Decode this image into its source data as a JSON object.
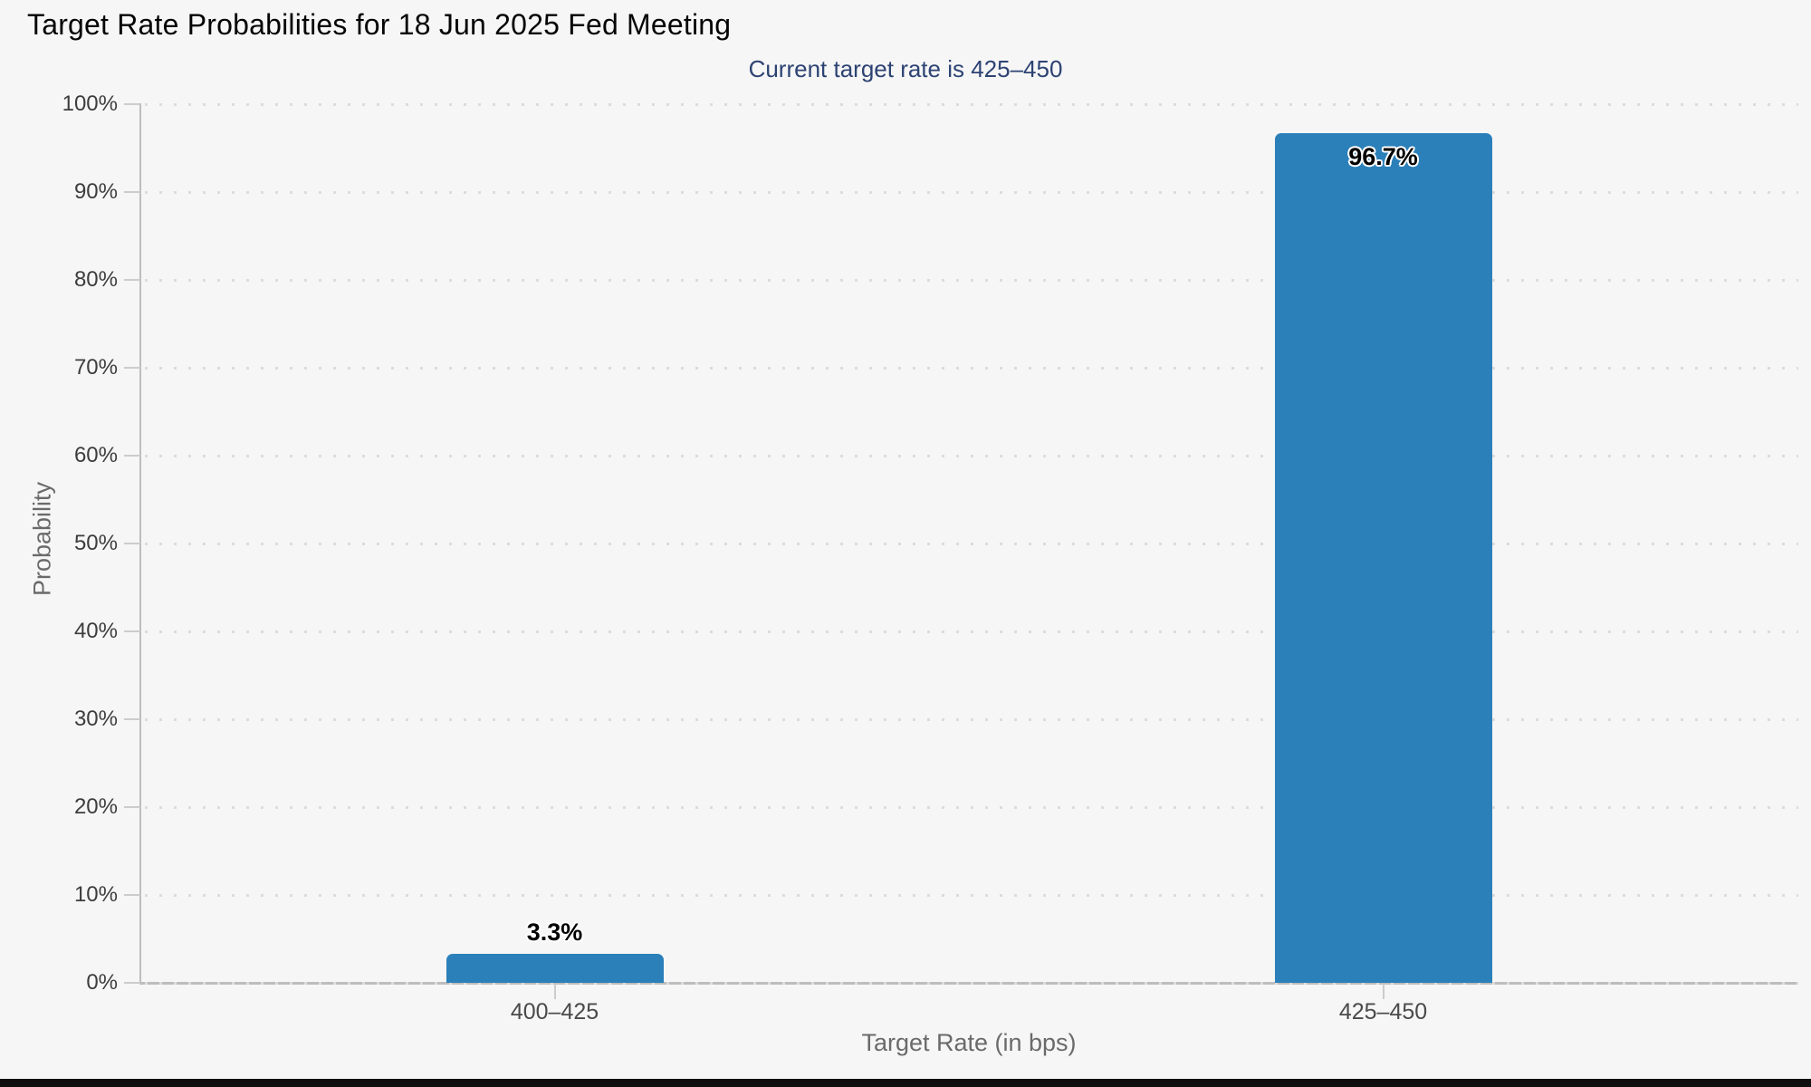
{
  "title": "Target Rate Probabilities for 18 Jun 2025 Fed Meeting",
  "subtitle": "Current target rate is 425–450",
  "colors": {
    "bar": "#2b80ba",
    "subtitle_text": "#2d4373",
    "background": "#f6f6f6",
    "grid_dots": "#dcdcdc",
    "axis_line": "#bdbdbd"
  },
  "chart_data": {
    "type": "bar",
    "title": "Target Rate Probabilities for 18 Jun 2025 Fed Meeting",
    "subtitle": "Current target rate is 425–450",
    "categories": [
      "400–425",
      "425–450"
    ],
    "values": [
      3.3,
      96.7
    ],
    "value_labels": [
      "3.3%",
      "96.7%"
    ],
    "xlabel": "Target Rate (in bps)",
    "ylabel": "Probability",
    "ylim": [
      0,
      100
    ],
    "ytick_step": 10,
    "ytick_labels": [
      "0%",
      "10%",
      "20%",
      "30%",
      "40%",
      "50%",
      "60%",
      "70%",
      "80%",
      "90%",
      "100%"
    ],
    "grid": "horizontal dotted",
    "legend": "none"
  }
}
